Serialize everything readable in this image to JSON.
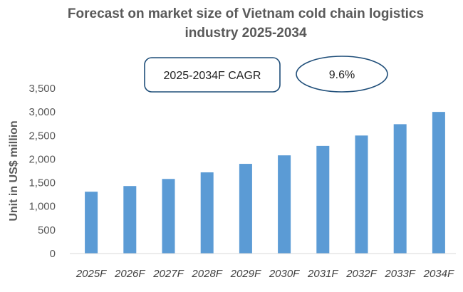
{
  "chart_data": {
    "type": "bar",
    "title": "Forecast on market size of Vietnam cold chain logistics industry 2025-2034",
    "title_lines": [
      "Forecast on market size of Vietnam cold chain logistics",
      "industry 2025-2034"
    ],
    "xlabel": "",
    "ylabel": "Unit in US$ million",
    "categories": [
      "2025F",
      "2026F",
      "2027F",
      "2028F",
      "2029F",
      "2030F",
      "2031F",
      "2032F",
      "2033F",
      "2034F"
    ],
    "values": [
      1310,
      1430,
      1580,
      1720,
      1900,
      2080,
      2280,
      2500,
      2740,
      3000
    ],
    "ylim": [
      0,
      3500
    ],
    "yticks": [
      0,
      500,
      1000,
      1500,
      2000,
      2500,
      3000,
      3500
    ],
    "ytick_labels": [
      "0",
      "500",
      "1,000",
      "1,500",
      "2,000",
      "2,500",
      "3,000",
      "3,500"
    ],
    "grid": false,
    "legend": "none",
    "bar_color": "#5B9BD5",
    "annotations": {
      "cagr_label": "2025-2034F CAGR",
      "cagr_value": "9.6%",
      "box_border_color": "#1F4E79"
    }
  }
}
